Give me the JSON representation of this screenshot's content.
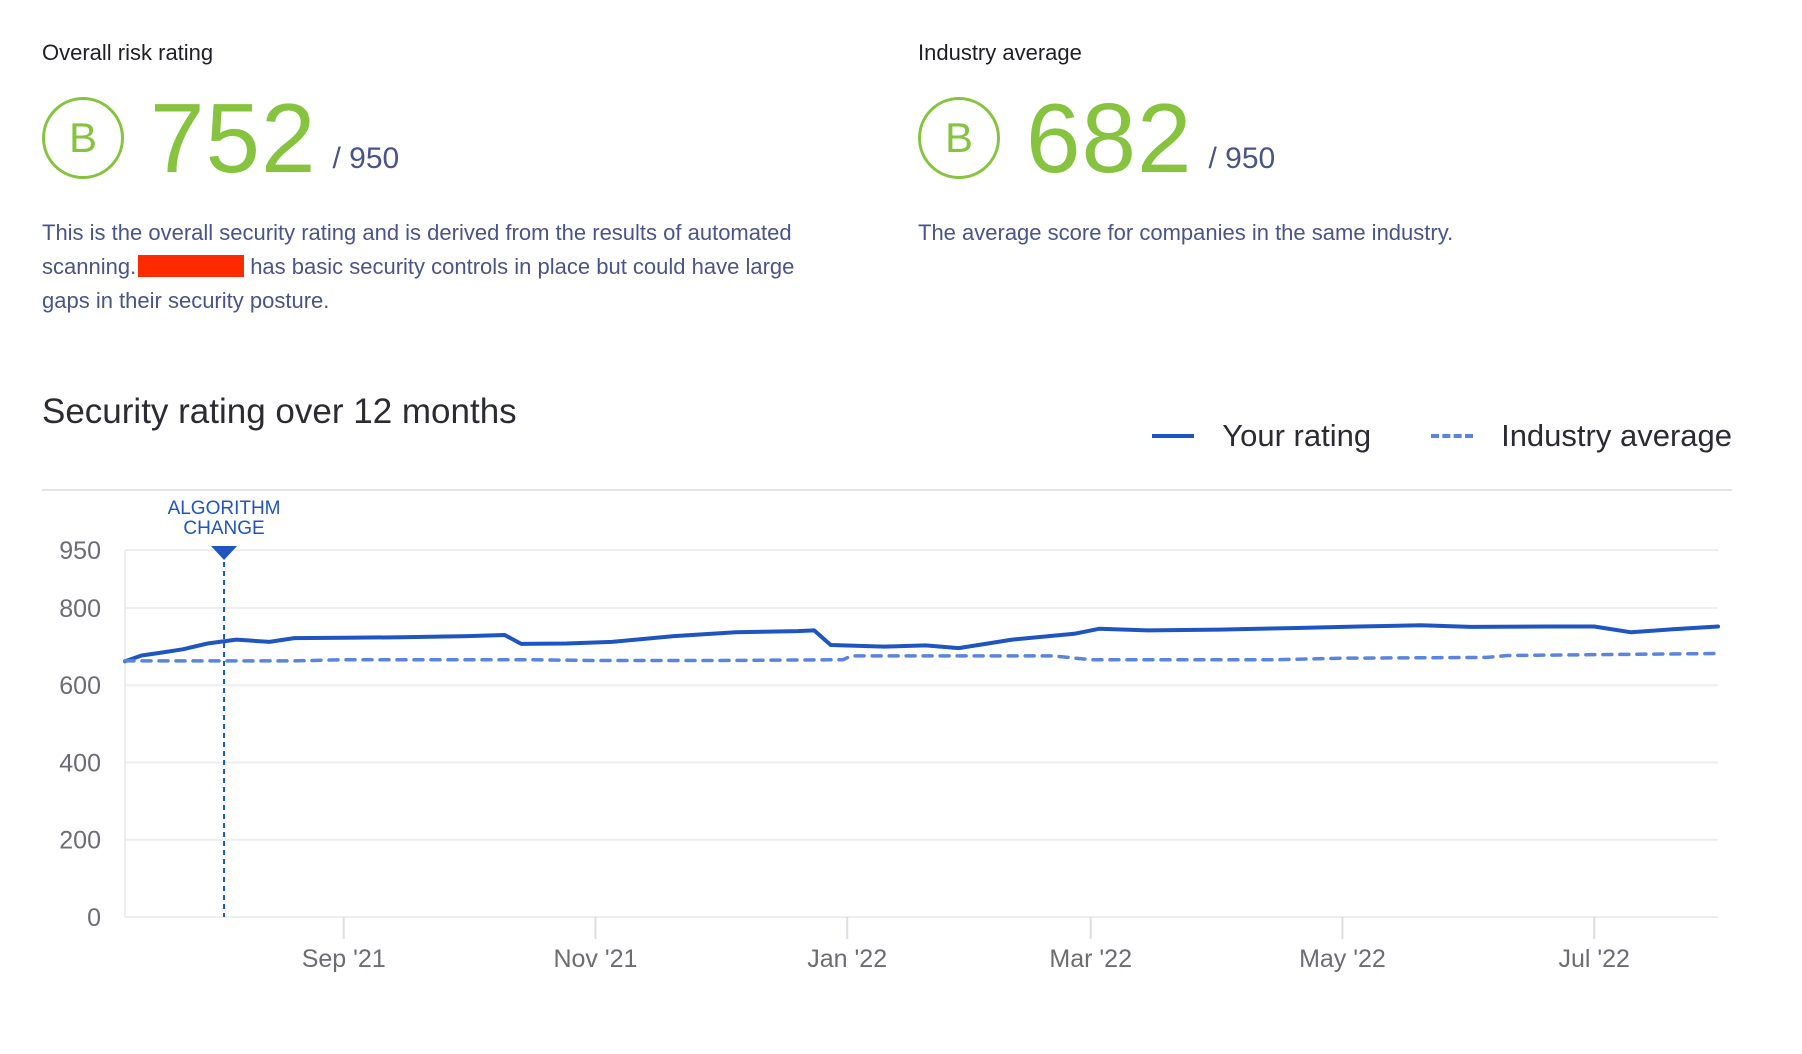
{
  "overall": {
    "label": "Overall risk rating",
    "grade": "B",
    "score": "752",
    "max": "/ 950",
    "desc_part1": "This is the overall security rating and is derived from the results of automated scanning.",
    "desc_part2": "has basic security controls in place but could have large gaps in their security posture."
  },
  "industry": {
    "label": "Industry average",
    "grade": "B",
    "score": "682",
    "max": "/ 950",
    "desc": "The average score for companies in the same industry."
  },
  "colors": {
    "grade": "#86c440",
    "your_rating": "#1f55c0",
    "industry_average": "#5b85dc",
    "redaction": "#ff2a00"
  },
  "chart_data": {
    "type": "line",
    "title": "Security rating over 12 months",
    "legend_position": "top-right",
    "grid": true,
    "x_range": [
      "2021-07-10",
      "2022-07-31"
    ],
    "ylim": [
      0,
      950
    ],
    "y_ticks": [
      0,
      200,
      400,
      600,
      800,
      950
    ],
    "x_ticks": [
      {
        "date": "2021-09-01",
        "label": "Sep '21"
      },
      {
        "date": "2021-11-01",
        "label": "Nov '21"
      },
      {
        "date": "2022-01-01",
        "label": "Jan '22"
      },
      {
        "date": "2022-03-01",
        "label": "Mar '22"
      },
      {
        "date": "2022-05-01",
        "label": "May '22"
      },
      {
        "date": "2022-07-01",
        "label": "Jul '22"
      }
    ],
    "annotations": [
      {
        "date": "2021-08-03",
        "label_line1": "ALGORITHM",
        "label_line2": "CHANGE"
      }
    ],
    "series": [
      {
        "name": "Your rating",
        "style": "solid",
        "points": [
          [
            "2021-07-10",
            662
          ],
          [
            "2021-07-14",
            677
          ],
          [
            "2021-07-18",
            683
          ],
          [
            "2021-07-24",
            693
          ],
          [
            "2021-07-30",
            708
          ],
          [
            "2021-08-06",
            718
          ],
          [
            "2021-08-14",
            712
          ],
          [
            "2021-08-20",
            722
          ],
          [
            "2021-09-01",
            723
          ],
          [
            "2021-09-15",
            724
          ],
          [
            "2021-10-01",
            727
          ],
          [
            "2021-10-10",
            730
          ],
          [
            "2021-10-14",
            707
          ],
          [
            "2021-10-25",
            708
          ],
          [
            "2021-11-05",
            712
          ],
          [
            "2021-11-20",
            727
          ],
          [
            "2021-12-05",
            737
          ],
          [
            "2021-12-20",
            740
          ],
          [
            "2021-12-24",
            742
          ],
          [
            "2021-12-28",
            704
          ],
          [
            "2022-01-10",
            700
          ],
          [
            "2022-01-20",
            703
          ],
          [
            "2022-01-28",
            696
          ],
          [
            "2022-02-10",
            718
          ],
          [
            "2022-02-25",
            733
          ],
          [
            "2022-03-03",
            746
          ],
          [
            "2022-03-15",
            742
          ],
          [
            "2022-04-01",
            744
          ],
          [
            "2022-04-20",
            748
          ],
          [
            "2022-05-05",
            752
          ],
          [
            "2022-05-20",
            755
          ],
          [
            "2022-06-01",
            751
          ],
          [
            "2022-06-20",
            752
          ],
          [
            "2022-07-01",
            752
          ],
          [
            "2022-07-10",
            737
          ],
          [
            "2022-07-20",
            745
          ],
          [
            "2022-07-31",
            752
          ]
        ]
      },
      {
        "name": "Industry average",
        "style": "dashed",
        "points": [
          [
            "2021-07-10",
            663
          ],
          [
            "2021-08-20",
            663
          ],
          [
            "2021-09-01",
            666
          ],
          [
            "2021-10-15",
            666
          ],
          [
            "2021-11-01",
            664
          ],
          [
            "2021-12-01",
            664
          ],
          [
            "2021-12-31",
            666
          ],
          [
            "2022-01-02",
            676
          ],
          [
            "2022-02-20",
            676
          ],
          [
            "2022-03-01",
            666
          ],
          [
            "2022-04-15",
            666
          ],
          [
            "2022-05-01",
            670
          ],
          [
            "2022-06-05",
            672
          ],
          [
            "2022-06-10",
            677
          ],
          [
            "2022-07-31",
            682
          ]
        ]
      }
    ]
  }
}
